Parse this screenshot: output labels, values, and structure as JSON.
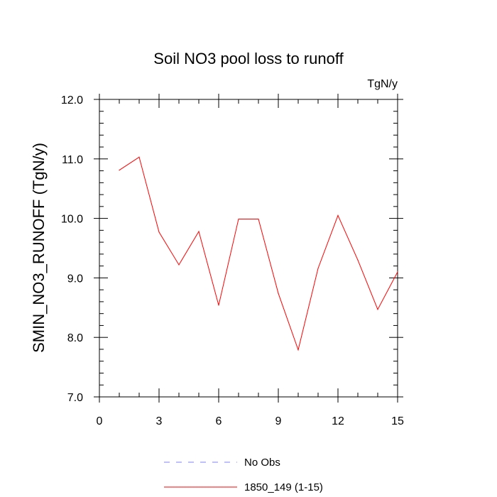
{
  "chart_data": {
    "type": "line",
    "title": "Soil NO3 pool loss to runoff",
    "unit_label": "TgN/y",
    "xlabel": "",
    "ylabel": "SMIN_NO3_RUNOFF  (TgN/y)",
    "xlim": [
      0,
      15
    ],
    "ylim": [
      7.0,
      12.0
    ],
    "xticks": [
      "0",
      "3",
      "6",
      "9",
      "12",
      "15"
    ],
    "yticks": [
      "7.0",
      "8.0",
      "9.0",
      "10.0",
      "11.0",
      "12.0"
    ],
    "grid": false,
    "legend_position": "bottom",
    "series": [
      {
        "name": "No Obs",
        "color": "#8080ff",
        "dash": "dashed",
        "x": [],
        "y": []
      },
      {
        "name": "1850_149 (1-15)",
        "color": "#ff0000",
        "dash": "solid",
        "x": [
          1,
          2,
          3,
          4,
          5,
          6,
          7,
          8,
          9,
          10,
          11,
          12,
          13,
          14,
          15
        ],
        "y": [
          10.81,
          11.03,
          9.77,
          9.22,
          9.78,
          8.54,
          9.99,
          9.99,
          8.74,
          7.79,
          9.16,
          10.05,
          9.3,
          8.47,
          9.1
        ]
      }
    ]
  }
}
